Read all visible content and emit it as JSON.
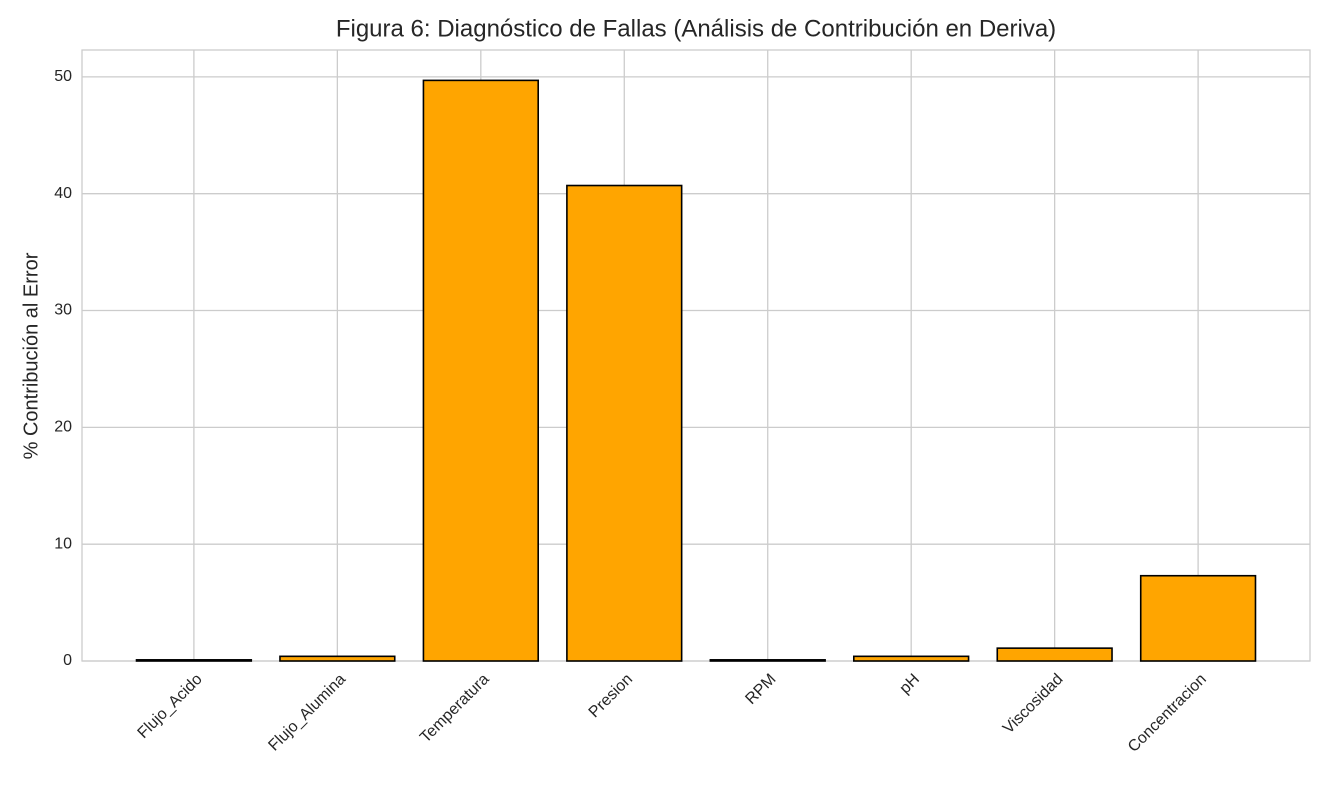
{
  "chart_data": {
    "type": "bar",
    "title": "Figura 6: Diagnóstico de Fallas (Análisis de Contribución en Deriva)",
    "y_label": "% Contribución al Error",
    "categories": [
      "Flujo_Acido",
      "Flujo_Alumina",
      "Temperatura",
      "Presion",
      "RPM",
      "pH",
      "Viscosidad",
      "Concentracion"
    ],
    "values": [
      0.1,
      0.4,
      49.7,
      40.7,
      0.1,
      0.4,
      1.1,
      7.3
    ],
    "color": "#ffa500",
    "edgecolor": "#000000",
    "ylim": [
      0,
      52.3
    ],
    "yticks": [
      0,
      10,
      20,
      30,
      40,
      50
    ],
    "grid": true
  }
}
